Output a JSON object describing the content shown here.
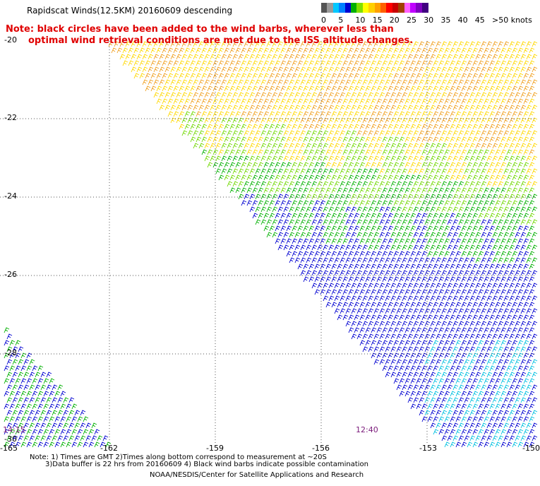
{
  "title": "Rapidscat Winds(12.5KM) 20160609 descending",
  "note": {
    "line1": "Note: black circles have been added to the wind barbs, wherever less than",
    "line2": "optimal wind retrieval conditions are met due to the ISS altitude changes."
  },
  "scale": {
    "labels": [
      "0",
      "5",
      "10",
      "15",
      "20",
      "25",
      "30",
      "35",
      "40",
      "45",
      ">50 knots"
    ],
    "colors": [
      "#555555",
      "#9a9a9a",
      "#00c8ff",
      "#0080ff",
      "#0000d0",
      "#00b000",
      "#80e000",
      "#ffff00",
      "#ffd000",
      "#ffa000",
      "#ff6000",
      "#ff0000",
      "#c80000",
      "#a04000",
      "#ff60ff",
      "#c000ff",
      "#8000c0",
      "#400080"
    ]
  },
  "axes": {
    "lat_labels": [
      "-20",
      "-22",
      "-24",
      "-26",
      "-28",
      "-30"
    ],
    "lon_labels": [
      "-165",
      "-162",
      "-159",
      "-156",
      "-153",
      "-150"
    ]
  },
  "time_labels": {
    "left": "14:15",
    "right": "12:40"
  },
  "footer": {
    "line1": "Note: 1) Times are GMT 2)Times along bottom correspond to measurement at ~20S",
    "line2": "3)Data buffer is 22 hrs from 20160609 4) Black wind barbs indicate possible contamination",
    "line3": "NOAA/NESDIS/Center for Satellite Applications and Research"
  },
  "colors": {
    "yellow": "#ffd800",
    "orange": "#f0a020",
    "green": "#00b000",
    "lightgreen": "#70d800",
    "blue": "#0000d0",
    "cyan": "#00c0e0",
    "grid": "#555555"
  }
}
